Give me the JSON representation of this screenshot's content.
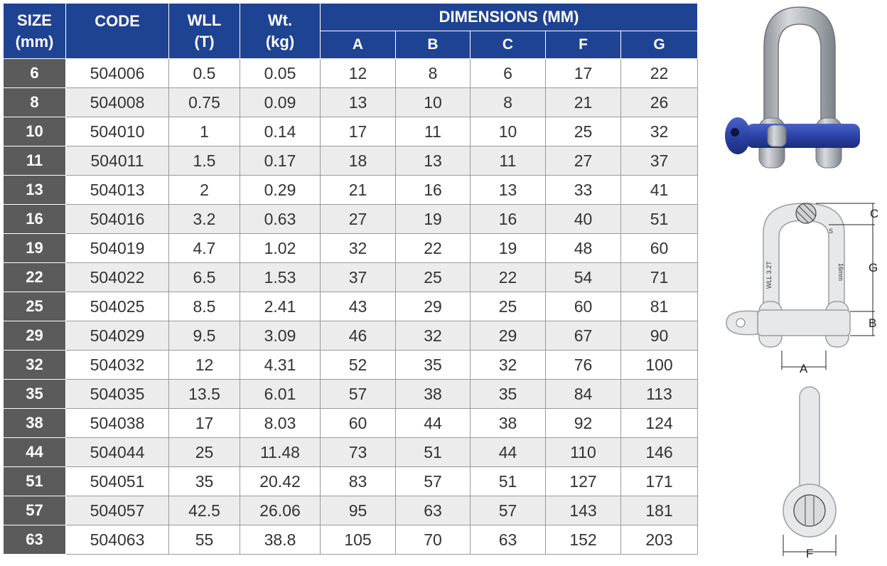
{
  "table": {
    "headers": {
      "size": "SIZE",
      "size_unit": "(mm)",
      "code": "CODE",
      "wll": "WLL",
      "wll_unit": "(T)",
      "wt": "Wt.",
      "wt_unit": "(kg)",
      "dimensions": "DIMENSIONS (MM)",
      "dim_cols": [
        "A",
        "B",
        "C",
        "F",
        "G"
      ]
    },
    "rows": [
      {
        "size": "6",
        "code": "504006",
        "wll": "0.5",
        "wt": "0.05",
        "a": "12",
        "b": "8",
        "c": "6",
        "f": "17",
        "g": "22"
      },
      {
        "size": "8",
        "code": "504008",
        "wll": "0.75",
        "wt": "0.09",
        "a": "13",
        "b": "10",
        "c": "8",
        "f": "21",
        "g": "26"
      },
      {
        "size": "10",
        "code": "504010",
        "wll": "1",
        "wt": "0.14",
        "a": "17",
        "b": "11",
        "c": "10",
        "f": "25",
        "g": "32"
      },
      {
        "size": "11",
        "code": "504011",
        "wll": "1.5",
        "wt": "0.17",
        "a": "18",
        "b": "13",
        "c": "11",
        "f": "27",
        "g": "37"
      },
      {
        "size": "13",
        "code": "504013",
        "wll": "2",
        "wt": "0.29",
        "a": "21",
        "b": "16",
        "c": "13",
        "f": "33",
        "g": "41"
      },
      {
        "size": "16",
        "code": "504016",
        "wll": "3.2",
        "wt": "0.63",
        "a": "27",
        "b": "19",
        "c": "16",
        "f": "40",
        "g": "51"
      },
      {
        "size": "19",
        "code": "504019",
        "wll": "4.7",
        "wt": "1.02",
        "a": "32",
        "b": "22",
        "c": "19",
        "f": "48",
        "g": "60"
      },
      {
        "size": "22",
        "code": "504022",
        "wll": "6.5",
        "wt": "1.53",
        "a": "37",
        "b": "25",
        "c": "22",
        "f": "54",
        "g": "71"
      },
      {
        "size": "25",
        "code": "504025",
        "wll": "8.5",
        "wt": "2.41",
        "a": "43",
        "b": "29",
        "c": "25",
        "f": "60",
        "g": "81"
      },
      {
        "size": "29",
        "code": "504029",
        "wll": "9.5",
        "wt": "3.09",
        "a": "46",
        "b": "32",
        "c": "29",
        "f": "67",
        "g": "90"
      },
      {
        "size": "32",
        "code": "504032",
        "wll": "12",
        "wt": "4.31",
        "a": "52",
        "b": "35",
        "c": "32",
        "f": "76",
        "g": "100"
      },
      {
        "size": "35",
        "code": "504035",
        "wll": "13.5",
        "wt": "6.01",
        "a": "57",
        "b": "38",
        "c": "35",
        "f": "84",
        "g": "113"
      },
      {
        "size": "38",
        "code": "504038",
        "wll": "17",
        "wt": "8.03",
        "a": "60",
        "b": "44",
        "c": "38",
        "f": "92",
        "g": "124"
      },
      {
        "size": "44",
        "code": "504044",
        "wll": "25",
        "wt": "11.48",
        "a": "73",
        "b": "51",
        "c": "44",
        "f": "110",
        "g": "146"
      },
      {
        "size": "51",
        "code": "504051",
        "wll": "35",
        "wt": "20.42",
        "a": "83",
        "b": "57",
        "c": "51",
        "f": "127",
        "g": "171"
      },
      {
        "size": "57",
        "code": "504057",
        "wll": "42.5",
        "wt": "26.06",
        "a": "95",
        "b": "63",
        "c": "57",
        "f": "143",
        "g": "181"
      },
      {
        "size": "63",
        "code": "504063",
        "wll": "55",
        "wt": "38.8",
        "a": "105",
        "b": "70",
        "c": "63",
        "f": "152",
        "g": "203"
      }
    ]
  },
  "photo": {
    "body_color": "#b9bdc2",
    "pin_color": "#2b43a8"
  },
  "diagram": {
    "labels": {
      "a": "A",
      "b": "B",
      "c": "C",
      "f": "F",
      "g": "G"
    },
    "marking_wll": "WLL 3.2T",
    "marking_size": "16mm",
    "marking_s": "S"
  },
  "colors": {
    "header_blue": "#1f4393",
    "size_column_gray": "#5b5b5b",
    "row_alt": "#ececec"
  }
}
